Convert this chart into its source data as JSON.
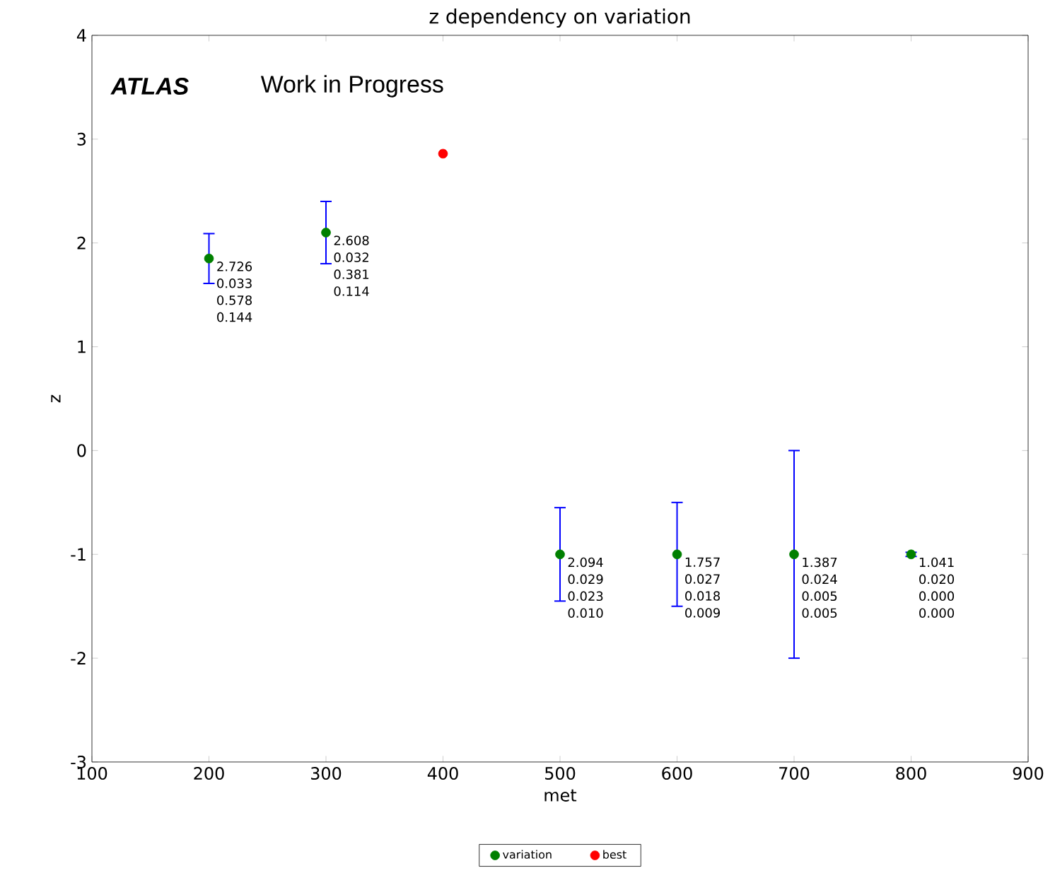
{
  "chart_data": {
    "type": "scatter",
    "title": "z dependency on variation",
    "xlabel": "met",
    "ylabel": "z",
    "xlim": [
      100,
      900
    ],
    "xticks": [
      100,
      200,
      300,
      400,
      500,
      600,
      700,
      800,
      900
    ],
    "ylim": [
      -3,
      4
    ],
    "yticks": [
      -3,
      -2,
      -1,
      0,
      1,
      2,
      3,
      4
    ],
    "grid": false,
    "legend": "bottom",
    "marker": "circle",
    "series": [
      {
        "name": "variation",
        "color": "#008000",
        "x": [
          200,
          300,
          500,
          600,
          700,
          800
        ],
        "values": [
          1.85,
          2.1,
          -1,
          -1,
          -1,
          -1
        ],
        "errors": [
          0.24,
          0.3,
          0.45,
          0.5,
          1,
          0.02
        ]
      },
      {
        "name": "best",
        "color": "#ff0000",
        "x": [
          400
        ],
        "values": [
          2.86
        ]
      }
    ],
    "annotations": [
      "ATLAS",
      "Work in Progress",
      {
        "text": "2.726 0.033 0.578 0.144",
        "x": 200,
        "y": 1.85
      },
      {
        "text": "2.608 0.032 0.381 0.114",
        "x": 300,
        "y": 2.1
      },
      {
        "text": "2.094 0.029 0.023 0.010",
        "x": 500,
        "y": -1
      },
      {
        "text": "1.757 0.027 0.018 0.009",
        "x": 600,
        "y": -1
      },
      {
        "text": "1.387 0.024 0.005 0.005",
        "x": 700,
        "y": -1
      },
      {
        "text": "1.041 0.020 0.000 0.000",
        "x": 800,
        "y": -1
      }
    ]
  }
}
